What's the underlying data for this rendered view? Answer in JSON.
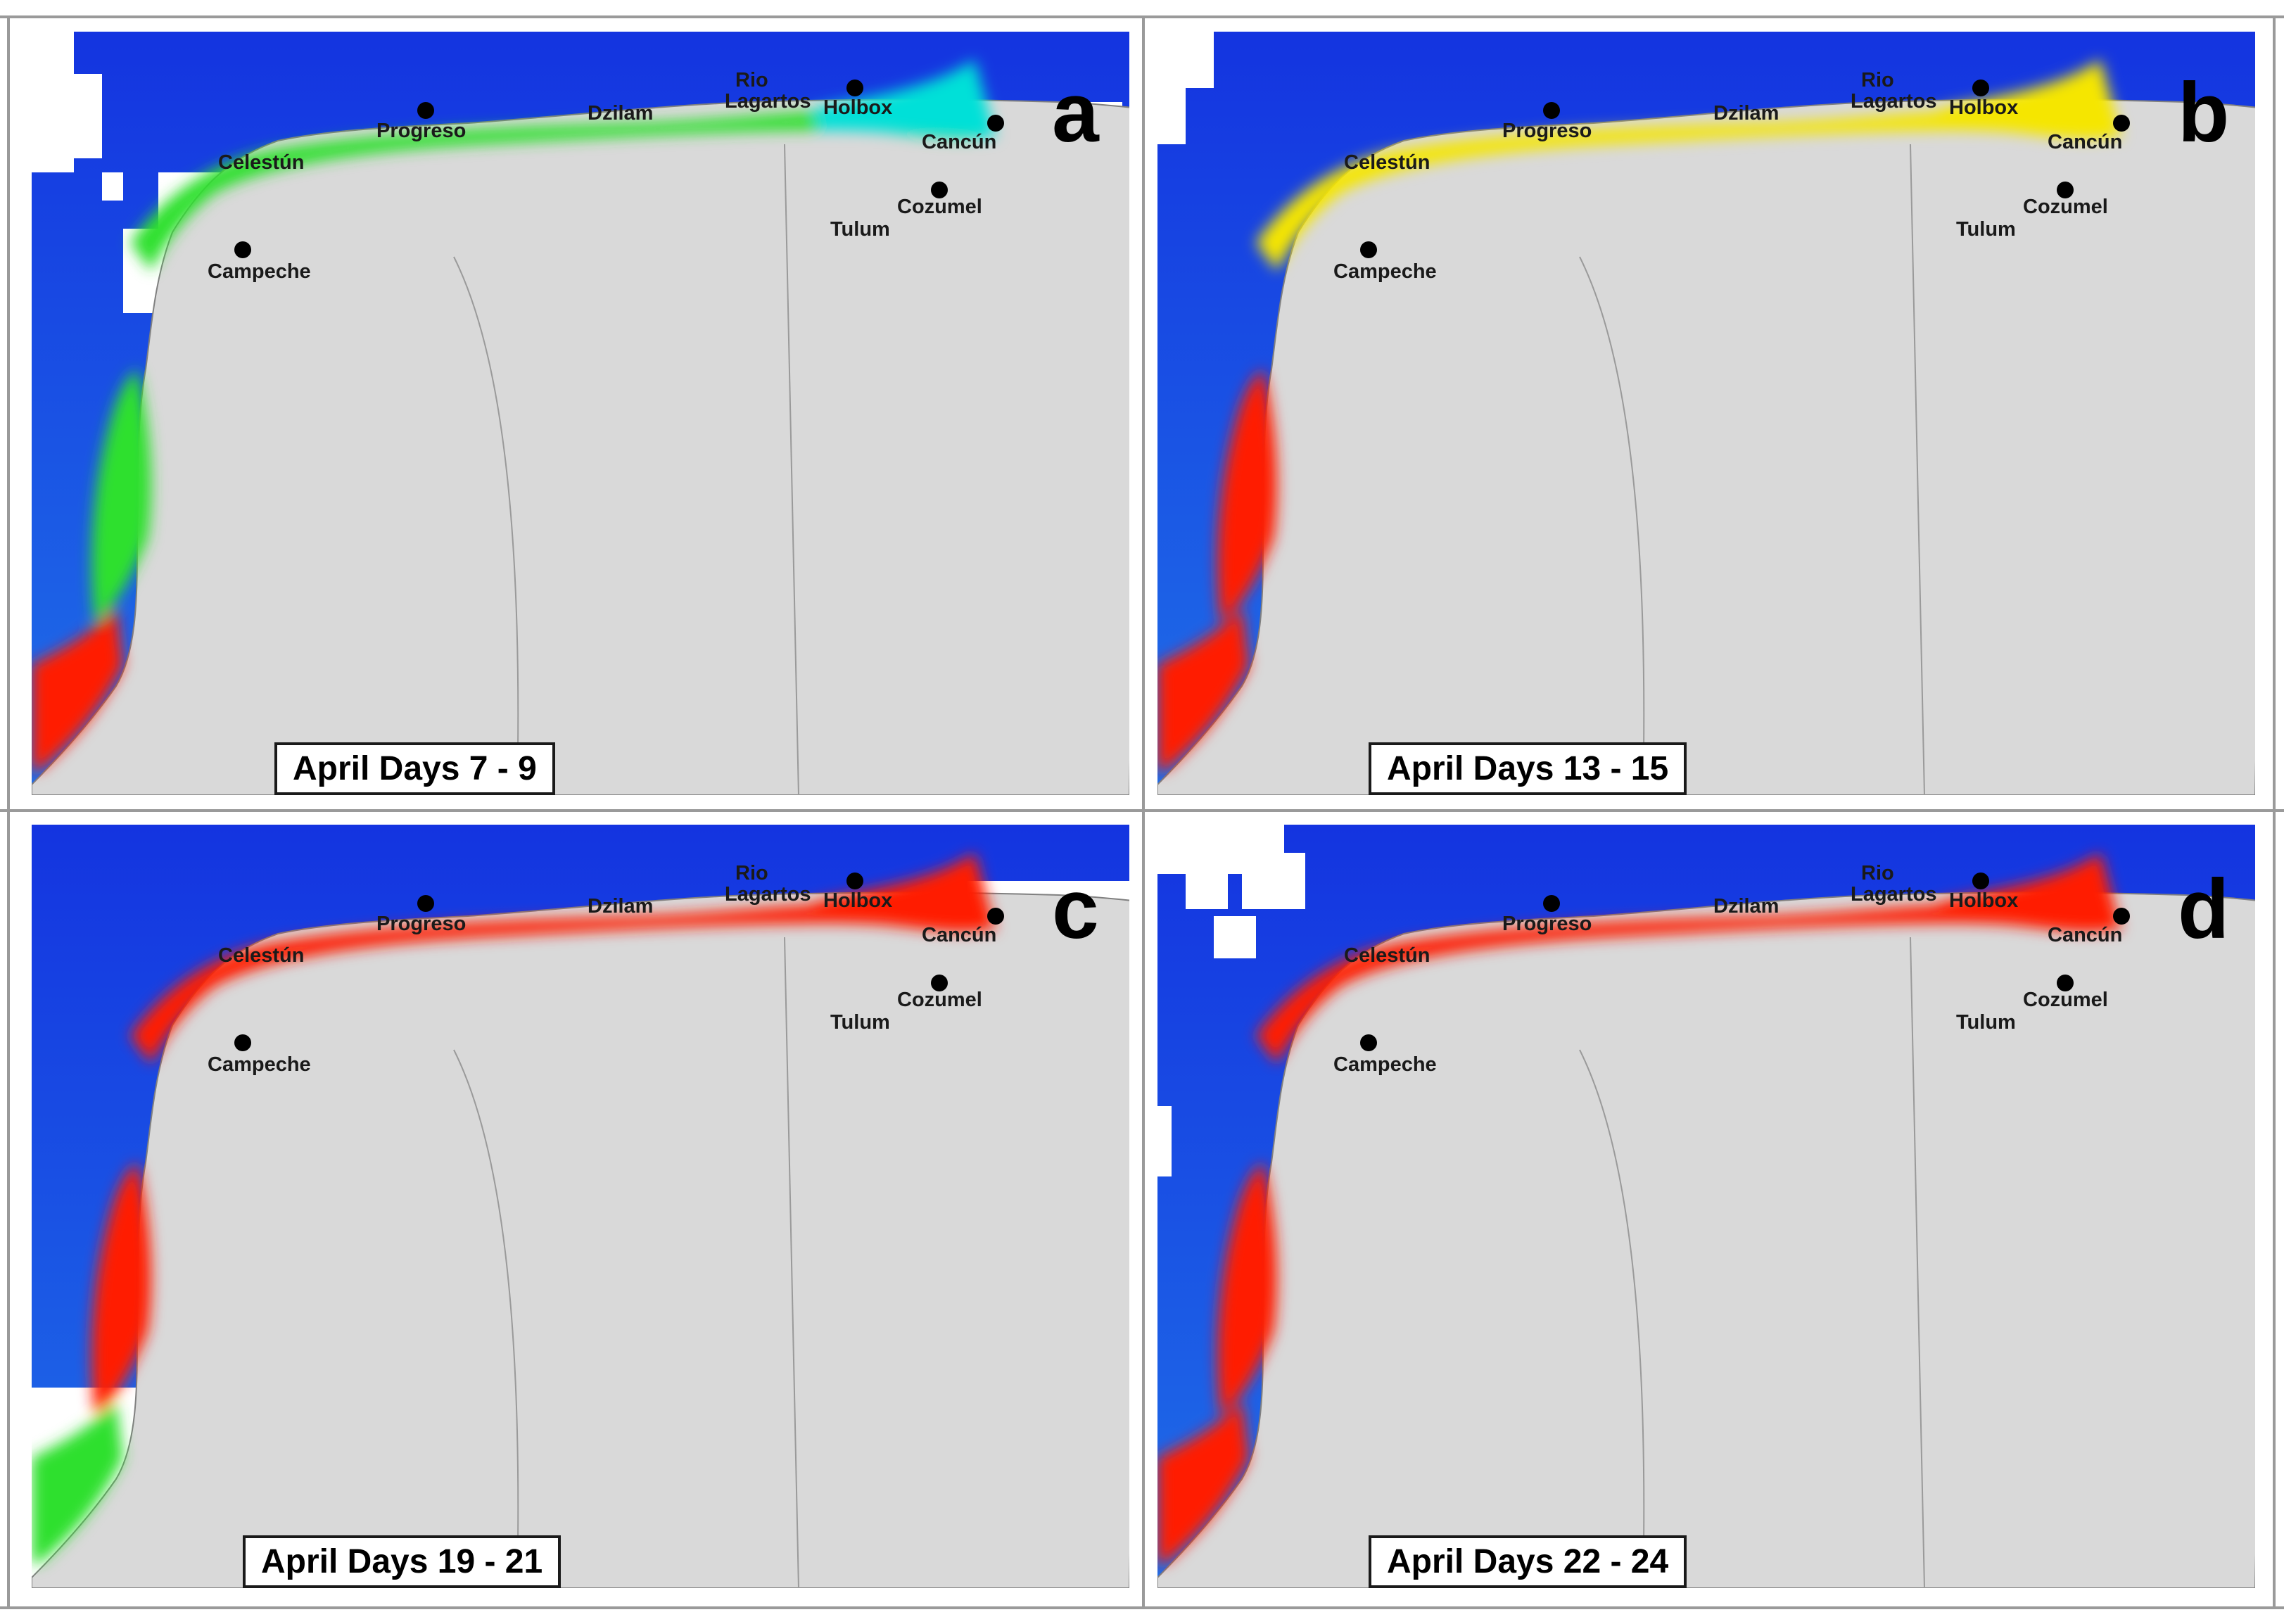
{
  "figure": {
    "panels": [
      {
        "letter": "a",
        "date_range": "April Days 7 - 9"
      },
      {
        "letter": "b",
        "date_range": "April Days 13 - 15"
      },
      {
        "letter": "c",
        "date_range": "April Days 19 - 21"
      },
      {
        "letter": "d",
        "date_range": "April Days 22 - 24"
      }
    ],
    "places": {
      "rio": "Rio",
      "lagartos": "Lagartos",
      "holbox": "Holbox",
      "dzilam": "Dzilam",
      "progreso": "Progreso",
      "cancun": "Cancún",
      "celestun": "Celestún",
      "cozumel": "Cozumel",
      "tulum": "Tulum",
      "campeche": "Campeche"
    },
    "colors": {
      "land": "#d9d9d9",
      "ocean_deep": "#1434e0",
      "ocean_mid": "#1f6fe8",
      "cloud_nodata": "#ffffff",
      "low": "#00e0d8",
      "moderate": "#2ee02e",
      "elevated": "#f5e600",
      "high": "#ff8a00",
      "very_high": "#ff1a00"
    },
    "bloom_levels": {
      "a": {
        "northeast": "low",
        "celestun": "moderate",
        "south": "very_high"
      },
      "b": {
        "northeast": "elevated",
        "celestun": "very_high",
        "south": "very_high"
      },
      "c": {
        "northeast": "very_high",
        "celestun": "very_high",
        "south": "moderate"
      },
      "d": {
        "northeast": "very_high",
        "celestun": "very_high",
        "south": "very_high"
      }
    }
  }
}
